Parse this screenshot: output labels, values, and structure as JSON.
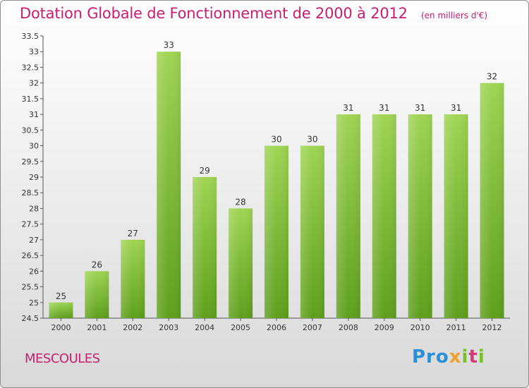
{
  "header": {
    "title": "Dotation Globale de Fonctionnement de 2000 à 2012",
    "subtitle": "(en milliers d'€)"
  },
  "footer": {
    "commune": "MESCOULES",
    "logo": "Proxiti"
  },
  "colors": {
    "accent": "#c81e6e",
    "bar_top": "#9fd454",
    "bar_bottom": "#5e9f1c",
    "axis": "#555555",
    "grid": "#cccccc"
  },
  "chart_data": {
    "type": "bar",
    "title": "Dotation Globale de Fonctionnement de 2000 à 2012",
    "subtitle": "(en milliers d'€)",
    "xlabel": "",
    "ylabel": "",
    "categories": [
      "2000",
      "2001",
      "2002",
      "2003",
      "2004",
      "2005",
      "2006",
      "2007",
      "2008",
      "2009",
      "2010",
      "2011",
      "2012"
    ],
    "values": [
      25,
      26,
      27,
      33,
      29,
      28,
      30,
      30,
      31,
      31,
      31,
      31,
      32
    ],
    "data_labels": [
      "25",
      "26",
      "27",
      "33",
      "29",
      "28",
      "30",
      "30",
      "31",
      "31",
      "31",
      "31",
      "32"
    ],
    "ylim": [
      24.5,
      33.5
    ],
    "yticks": [
      "24.5",
      "25",
      "25.5",
      "26",
      "26.5",
      "27",
      "27.5",
      "28",
      "28.5",
      "29",
      "29.5",
      "30",
      "30.5",
      "31",
      "31.5",
      "32",
      "32.5",
      "33",
      "33.5"
    ],
    "grid": false,
    "legend": "none"
  }
}
